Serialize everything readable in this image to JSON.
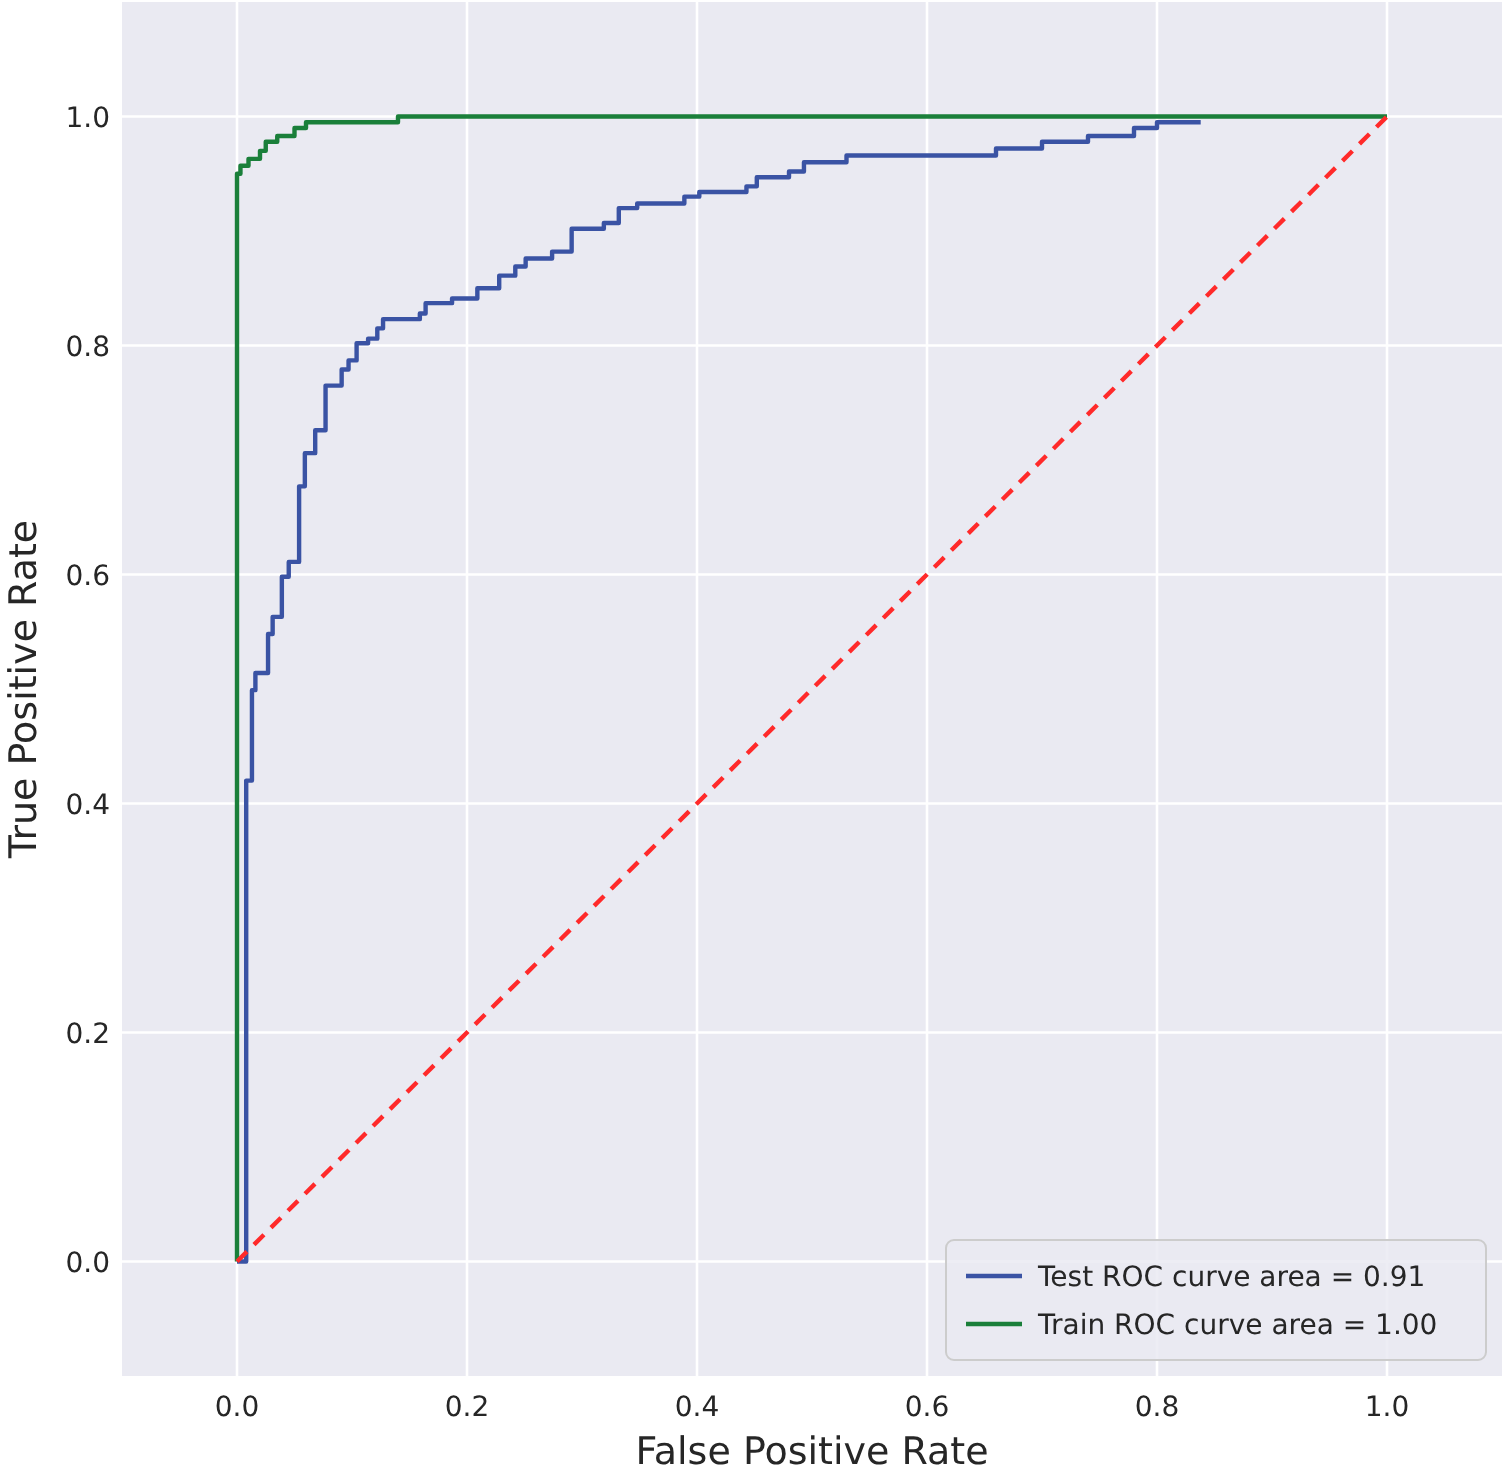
{
  "chart_data": {
    "type": "line",
    "xlabel": "False Positive Rate",
    "ylabel": "True Positive Rate",
    "xlim": [
      -0.1,
      1.1
    ],
    "ylim": [
      -0.1,
      1.1
    ],
    "xticks": [
      {
        "value": 0,
        "label": "0.0"
      },
      {
        "value": 0.2,
        "label": "0.2"
      },
      {
        "value": 0.4,
        "label": "0.4"
      },
      {
        "value": 0.6,
        "label": "0.6"
      },
      {
        "value": 0.8,
        "label": "0.8"
      },
      {
        "value": 1,
        "label": "1.0"
      }
    ],
    "yticks": [
      {
        "value": 0,
        "label": "0.0"
      },
      {
        "value": 0.2,
        "label": "0.2"
      },
      {
        "value": 0.4,
        "label": "0.4"
      },
      {
        "value": 0.6,
        "label": "0.6"
      },
      {
        "value": 0.8,
        "label": "0.8"
      },
      {
        "value": 1,
        "label": "1.0"
      }
    ],
    "grid": true,
    "legend": "bottom right",
    "marker": "none",
    "series": [
      {
        "name": "Test ROC curve area = 0.91",
        "color": "#3a53a4",
        "line_style": "solid",
        "x": [
          0,
          0.008,
          0.008,
          0.013,
          0.013,
          0.016,
          0.016,
          0.027,
          0.027,
          0.031,
          0.031,
          0.039,
          0.039,
          0.045,
          0.045,
          0.054,
          0.054,
          0.059,
          0.059,
          0.068,
          0.068,
          0.077,
          0.077,
          0.091,
          0.091,
          0.097,
          0.097,
          0.104,
          0.104,
          0.114,
          0.114,
          0.122,
          0.122,
          0.127,
          0.127,
          0.159,
          0.159,
          0.164,
          0.164,
          0.187,
          0.187,
          0.209,
          0.209,
          0.228,
          0.228,
          0.242,
          0.242,
          0.251,
          0.251,
          0.274,
          0.274,
          0.291,
          0.291,
          0.319,
          0.319,
          0.332,
          0.332,
          0.348,
          0.348,
          0.389,
          0.389,
          0.402,
          0.402,
          0.443,
          0.443,
          0.452,
          0.452,
          0.48,
          0.48,
          0.493,
          0.493,
          0.53,
          0.53,
          0.66,
          0.66,
          0.7,
          0.7,
          0.74,
          0.74,
          0.78,
          0.78,
          0.8,
          0.8,
          0.838
        ],
        "values": [
          0,
          0,
          0.42,
          0.42,
          0.499,
          0.499,
          0.514,
          0.514,
          0.548,
          0.548,
          0.563,
          0.563,
          0.598,
          0.598,
          0.611,
          0.611,
          0.677,
          0.677,
          0.706,
          0.706,
          0.726,
          0.726,
          0.765,
          0.765,
          0.779,
          0.779,
          0.787,
          0.787,
          0.802,
          0.802,
          0.806,
          0.806,
          0.815,
          0.815,
          0.823,
          0.823,
          0.828,
          0.828,
          0.837,
          0.837,
          0.841,
          0.841,
          0.85,
          0.85,
          0.861,
          0.861,
          0.869,
          0.869,
          0.876,
          0.876,
          0.882,
          0.882,
          0.902,
          0.902,
          0.907,
          0.907,
          0.92,
          0.92,
          0.924,
          0.924,
          0.93,
          0.93,
          0.934,
          0.934,
          0.939,
          0.939,
          0.947,
          0.947,
          0.952,
          0.952,
          0.96,
          0.96,
          0.966,
          0.966,
          0.972,
          0.972,
          0.978,
          0.978,
          0.983,
          0.983,
          0.99,
          0.99,
          0.995,
          0.995
        ]
      },
      {
        "name": "Train ROC curve area = 1.00",
        "color": "#1a7f3a",
        "line_style": "solid",
        "x": [
          0,
          0,
          0.003,
          0.003,
          0.01,
          0.01,
          0.02,
          0.02,
          0.025,
          0.025,
          0.035,
          0.035,
          0.05,
          0.05,
          0.06,
          0.06,
          0.14,
          0.14,
          1
        ],
        "values": [
          0,
          0.95,
          0.95,
          0.957,
          0.957,
          0.963,
          0.963,
          0.97,
          0.97,
          0.978,
          0.978,
          0.983,
          0.983,
          0.99,
          0.99,
          0.995,
          0.995,
          1,
          1
        ]
      },
      {
        "color": "#ff2a2a",
        "line_style": "dashed",
        "x": [
          0,
          1
        ],
        "values": [
          0,
          1
        ]
      }
    ]
  }
}
